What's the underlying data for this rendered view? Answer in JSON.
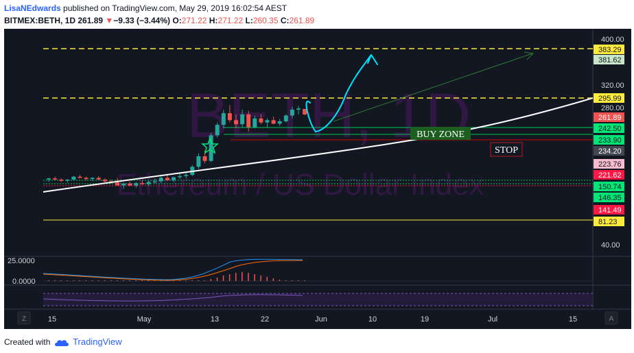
{
  "header": {
    "author": "LisaNEdwards",
    "published": "published on TradingView.com, May 29, 2019 16:02:54 AEST",
    "symbol": "BITMEX:BETH, 1D",
    "last": "261.89",
    "change": "−9.33 (−3.44%)",
    "o_label": "O:",
    "o": "271.22",
    "h_label": "H:",
    "h": "271.22",
    "l_label": "L:",
    "l": "260.35",
    "c_label": "C:",
    "c": "261.89"
  },
  "watermark": {
    "symbol": "BETH, 1D",
    "description": "Ethereum / US Dollar Index"
  },
  "annotations": {
    "buy_zone": "BUY ZONE",
    "stop": "STOP"
  },
  "price_axis": {
    "scale_labels": [
      "400.00",
      "320.00",
      "280.00",
      "40.00"
    ],
    "badges": [
      {
        "label": "383.29",
        "bg": "#ffeb3b",
        "fg": "#131722"
      },
      {
        "label": "381.62",
        "bg": "#c8e6c9",
        "fg": "#131722"
      },
      {
        "label": "295.99",
        "bg": "#ffeb3b",
        "fg": "#131722"
      },
      {
        "label": "261.89",
        "bg": "#ef5350",
        "fg": "#ffffff"
      },
      {
        "label": "242.50",
        "bg": "#00e676",
        "fg": "#131722"
      },
      {
        "label": "233.90",
        "bg": "#00e676",
        "fg": "#131722"
      },
      {
        "label": "234.20",
        "bg": "#434651",
        "fg": "#ffffff"
      },
      {
        "label": "223.76",
        "bg": "#f8bbd0",
        "fg": "#131722"
      },
      {
        "label": "221.62",
        "bg": "#ff1744",
        "fg": "#ffffff"
      },
      {
        "label": "150.74",
        "bg": "#00e676",
        "fg": "#131722"
      },
      {
        "label": "146.35",
        "bg": "#00e676",
        "fg": "#131722"
      },
      {
        "label": "141.49",
        "bg": "#ff1744",
        "fg": "#ffffff"
      },
      {
        "label": "81.23",
        "bg": "#ffeb3b",
        "fg": "#131722"
      }
    ]
  },
  "indicator": {
    "upper_label": "25.0000",
    "zero_label": "0.0000"
  },
  "time_axis": {
    "labels": [
      "15",
      "May",
      "13",
      "22",
      "Jun",
      "10",
      "19",
      "Jul",
      "15"
    ],
    "left_button": "Z",
    "right_button": "A"
  },
  "footer": {
    "created": "Created with",
    "brand": "TradingView"
  },
  "colors": {
    "background": "#131722",
    "up": "#26a69a",
    "down": "#ef5350",
    "buy_zone_bg": "#1b5e20",
    "buy_zone_line": "#00c853",
    "stop_line": "#d50000",
    "target_line": "#ffeb3b",
    "trend_curve": "#ffffff",
    "pen_cyan": "#00e5ff",
    "arrow_green": "#2e7d32"
  },
  "chart_data": {
    "type": "candlestick",
    "candles": [
      [
        150,
        153,
        146,
        152
      ],
      [
        152,
        155,
        149,
        150
      ],
      [
        150,
        152,
        146,
        148
      ],
      [
        148,
        151,
        145,
        150
      ],
      [
        150,
        156,
        148,
        155
      ],
      [
        155,
        158,
        152,
        153
      ],
      [
        153,
        155,
        149,
        151
      ],
      [
        151,
        154,
        148,
        153
      ],
      [
        153,
        156,
        150,
        150
      ],
      [
        150,
        152,
        145,
        147
      ],
      [
        147,
        150,
        143,
        145
      ],
      [
        145,
        153,
        140,
        140
      ],
      [
        140,
        145,
        134,
        143
      ],
      [
        143,
        147,
        139,
        140
      ],
      [
        140,
        146,
        136,
        144
      ],
      [
        144,
        149,
        141,
        142
      ],
      [
        142,
        148,
        139,
        146
      ],
      [
        146,
        152,
        143,
        147
      ],
      [
        147,
        156,
        144,
        153
      ],
      [
        153,
        158,
        148,
        149
      ],
      [
        149,
        155,
        146,
        154
      ],
      [
        154,
        160,
        151,
        156
      ],
      [
        156,
        162,
        152,
        158
      ],
      [
        158,
        175,
        156,
        172
      ],
      [
        172,
        195,
        168,
        190
      ],
      [
        190,
        200,
        178,
        182
      ],
      [
        182,
        230,
        180,
        226
      ],
      [
        226,
        248,
        222,
        244
      ],
      [
        244,
        270,
        238,
        264
      ],
      [
        264,
        278,
        248,
        252
      ],
      [
        252,
        262,
        238,
        245
      ],
      [
        245,
        270,
        240,
        262
      ],
      [
        262,
        268,
        232,
        240
      ],
      [
        240,
        260,
        238,
        255
      ],
      [
        255,
        262,
        245,
        248
      ],
      [
        248,
        255,
        240,
        252
      ],
      [
        252,
        258,
        245,
        246
      ],
      [
        246,
        254,
        242,
        250
      ],
      [
        250,
        262,
        248,
        260
      ],
      [
        260,
        275,
        255,
        270
      ],
      [
        270,
        276,
        262,
        272
      ],
      [
        271.22,
        271.22,
        260.35,
        261.89
      ]
    ],
    "horizontal_levels": [
      383.29,
      295.99,
      242.5,
      233.9,
      234.2,
      150.74,
      146.35,
      81.23
    ],
    "ylim": [
      40,
      400
    ]
  }
}
